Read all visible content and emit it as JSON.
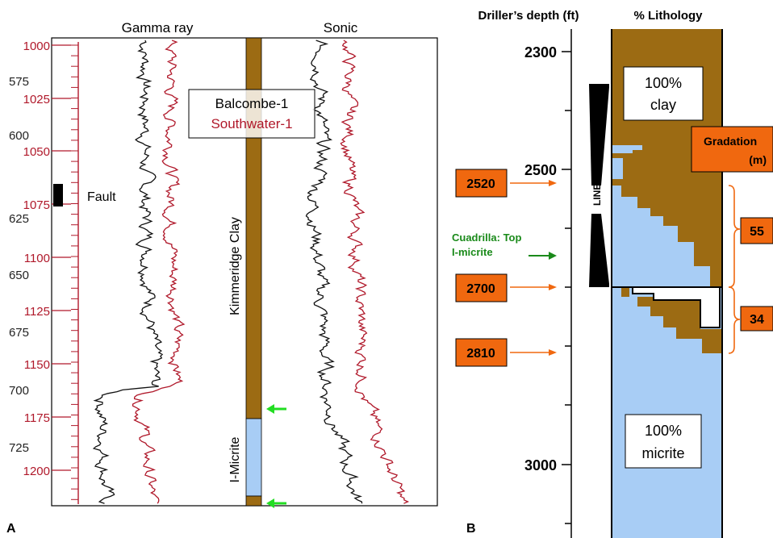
{
  "panelA": {
    "label": "A",
    "gamma_title": "Gamma ray",
    "sonic_title": "Sonic",
    "legend": {
      "well1": "Balcombe-1",
      "well2": "Southwater-1"
    },
    "fault_label": "Fault",
    "depth_red": [
      "1000",
      "1025",
      "1050",
      "1075",
      "1100",
      "1125",
      "1150",
      "1175",
      "1200"
    ],
    "depth_black": [
      "575",
      "600",
      "625",
      "650",
      "675",
      "700",
      "725"
    ],
    "kimmeridge_label": "Kimmeridge Clay",
    "micrite_label": "I-Micrite",
    "colors": {
      "clay": "#9c6b13",
      "micrite": "#a8cdf5",
      "red_log": "#b0182a",
      "black_log": "#111111",
      "arrow": "#22dd22"
    }
  },
  "panelB": {
    "label": "B",
    "depth_title": "Driller’s depth (ft)",
    "litho_title": "% Lithology",
    "depth_ticks": [
      "2300",
      "2500",
      "3000"
    ],
    "clay_box": {
      "value": "100%",
      "name": "clay"
    },
    "micrite_box": {
      "value": "100%",
      "name": "micrite"
    },
    "liner_label": "LINER",
    "gradation_label": "Gradation",
    "gradation_unit": "(m)",
    "gradation_values": [
      "55",
      "34"
    ],
    "depth_markers": [
      "2520",
      "2700",
      "2810"
    ],
    "cuadrilla_line1": "Cuadrilla: Top",
    "cuadrilla_line2": "I-micrite",
    "colors": {
      "clay": "#9c6b13",
      "micrite": "#a8cdf5",
      "marker": "#f0680f",
      "cuadrilla": "#1a8a1a"
    }
  }
}
